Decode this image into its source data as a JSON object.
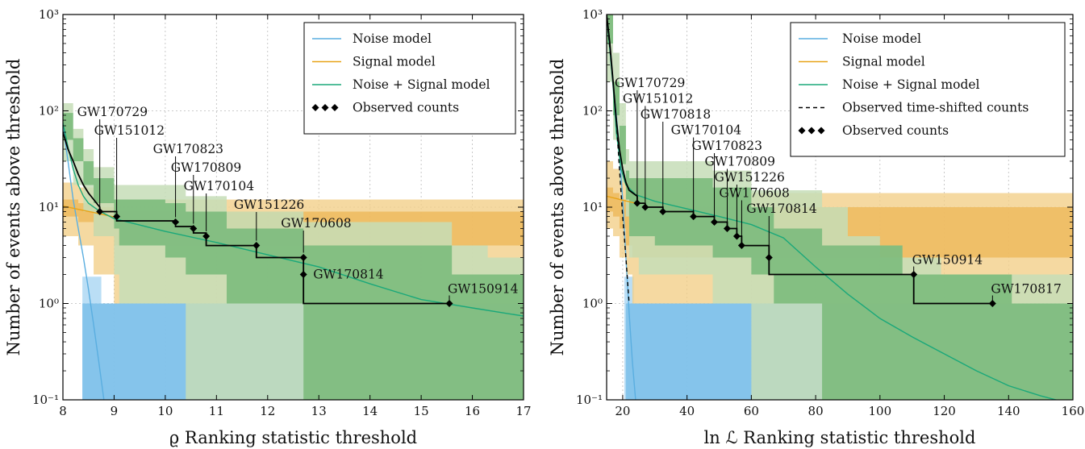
{
  "chart_data": [
    {
      "type": "line",
      "xlabel": "ϱ Ranking statistic threshold",
      "ylabel": "Number of events above threshold",
      "xlim": [
        8,
        17
      ],
      "ylim": [
        0.1,
        1000
      ],
      "yscale": "log",
      "xticks": [
        8,
        9,
        10,
        11,
        12,
        13,
        14,
        15,
        16,
        17
      ],
      "xticklabels": [
        "8",
        "9",
        "10",
        "11",
        "12",
        "13",
        "14",
        "15",
        "16",
        "17"
      ],
      "yticks": [
        0.1,
        1,
        10,
        100,
        1000
      ],
      "yticklabels": [
        "10⁻¹",
        "10⁰",
        "10¹",
        "10²",
        "10³"
      ],
      "grid": true,
      "legend_position": "top-right",
      "legend": [
        {
          "label": "Noise model",
          "kind": "line",
          "color": "#5aaee0"
        },
        {
          "label": "Signal model",
          "kind": "line",
          "color": "#e8a317"
        },
        {
          "label": "Noise + Signal model",
          "kind": "line",
          "color": "#1aa87a"
        },
        {
          "label": "Observed counts",
          "kind": "markers",
          "color": "#000000"
        }
      ],
      "observed_steps": [
        [
          8,
          60
        ],
        [
          8.1,
          40
        ],
        [
          8.2,
          30
        ],
        [
          8.3,
          22
        ],
        [
          8.4,
          17
        ],
        [
          8.5,
          14
        ],
        [
          8.6,
          12
        ],
        [
          8.72,
          10
        ],
        [
          8.72,
          9
        ],
        [
          9.05,
          9
        ],
        [
          9.05,
          7.2
        ],
        [
          10.2,
          7.2
        ],
        [
          10.2,
          6.3
        ],
        [
          10.55,
          6.3
        ],
        [
          10.55,
          5.4
        ],
        [
          10.8,
          5.4
        ],
        [
          10.8,
          4
        ],
        [
          11.78,
          4
        ],
        [
          11.78,
          3
        ],
        [
          12.7,
          3
        ],
        [
          12.7,
          1
        ],
        [
          15.55,
          1
        ]
      ],
      "events": [
        {
          "name": "GW170729",
          "x": 8.72,
          "y": 9
        },
        {
          "name": "GW151012",
          "x": 9.05,
          "y": 8
        },
        {
          "name": "GW170823",
          "x": 10.2,
          "y": 7
        },
        {
          "name": "GW170809",
          "x": 10.55,
          "y": 6
        },
        {
          "name": "GW170104",
          "x": 10.8,
          "y": 5
        },
        {
          "name": "GW151226",
          "x": 11.78,
          "y": 4
        },
        {
          "name": "GW170608",
          "x": 12.7,
          "y": 3
        },
        {
          "name": "GW170814",
          "x": 12.7,
          "y": 2
        },
        {
          "name": "GW150914",
          "x": 15.55,
          "y": 1
        }
      ],
      "noise_model": [
        [
          8,
          70
        ],
        [
          8.1,
          30
        ],
        [
          8.2,
          12
        ],
        [
          8.3,
          6
        ],
        [
          8.4,
          3
        ],
        [
          8.5,
          1.4
        ],
        [
          8.6,
          0.6
        ],
        [
          8.7,
          0.25
        ],
        [
          8.8,
          0.1
        ]
      ],
      "signal_model": [
        [
          8,
          10.3
        ],
        [
          8.3,
          9.5
        ],
        [
          8.6,
          8.8
        ],
        [
          9,
          7.9
        ]
      ],
      "noise_signal_model": [
        [
          8,
          75
        ],
        [
          8.1,
          42
        ],
        [
          8.2,
          25
        ],
        [
          8.3,
          17
        ],
        [
          8.4,
          13
        ],
        [
          8.5,
          11
        ],
        [
          8.7,
          9.2
        ],
        [
          9,
          7.6
        ],
        [
          10,
          5.6
        ],
        [
          11,
          4.3
        ],
        [
          12,
          3.2
        ],
        [
          13,
          2.4
        ],
        [
          14,
          1.6
        ],
        [
          15,
          1.1
        ],
        [
          16,
          0.9
        ],
        [
          17,
          0.74
        ]
      ],
      "bands": [
        {
          "role": "noise",
          "level": "outer",
          "color": "#a9d6f2",
          "x": [
            8.38,
            8.38,
            8.55,
            8.75,
            9.0
          ],
          "ylo": [
            0.1,
            0.1,
            0.1,
            0.1,
            0.1
          ],
          "yhi": [
            1.9,
            1.9,
            1.9,
            1.0,
            1.0
          ]
        },
        {
          "role": "noise",
          "level": "inner",
          "color": "#78bde9",
          "x": [
            8.38,
            8.5,
            8.6,
            8.72
          ],
          "ylo": [
            0.1,
            0.1,
            0.1,
            0.1
          ],
          "yhi": [
            1.0,
            1.0,
            1.0,
            1.0
          ]
        },
        {
          "role": "signal",
          "level": "outer",
          "color": "#f2d08a",
          "x": [
            8,
            8.3,
            8.6,
            9.0
          ],
          "ylo": [
            5,
            4,
            2,
            1
          ],
          "yhi": [
            18,
            16,
            14,
            12
          ]
        },
        {
          "role": "signal",
          "level": "inner",
          "color": "#eeb85a",
          "x": [
            8,
            8.3,
            8.6,
            9.0
          ],
          "ylo": [
            8,
            7,
            5,
            4
          ],
          "yhi": [
            12,
            11,
            10,
            9
          ]
        },
        {
          "role": "combined",
          "level": "outer",
          "color": "#c5ddb7",
          "x": [
            8,
            8.2,
            8.4,
            8.6,
            9.0,
            9.1,
            10.0,
            10.4,
            11.2,
            12.7,
            13.3,
            15.6,
            16.3,
            17
          ],
          "ylo": [
            30,
            17,
            9,
            5,
            2,
            1,
            1,
            0.1,
            0.1,
            0.1,
            0.1,
            0.1,
            0.1,
            0.1
          ],
          "yhi": [
            120,
            65,
            40,
            26,
            17,
            17,
            17,
            13,
            9,
            7,
            7,
            4,
            3,
            3
          ]
        },
        {
          "role": "combined",
          "level": "inner",
          "color": "#7fbd80",
          "x": [
            8,
            8.2,
            8.4,
            8.6,
            9.0,
            9.1,
            10.0,
            10.4,
            11.2,
            12.7,
            13.3,
            15.6,
            16.3,
            17
          ],
          "ylo": [
            50,
            30,
            17,
            11,
            6,
            4,
            3,
            2,
            1,
            0.1,
            0.1,
            0.1,
            0.1,
            0.1
          ],
          "yhi": [
            95,
            52,
            30,
            20,
            12,
            12,
            11,
            9,
            6,
            4,
            4,
            2,
            2,
            2
          ]
        }
      ]
    },
    {
      "type": "line",
      "xlabel": "ln ℒ Ranking statistic threshold",
      "ylabel": "Number of events above threshold",
      "xlim": [
        15,
        160
      ],
      "ylim": [
        0.1,
        1000
      ],
      "yscale": "log",
      "xticks": [
        20,
        40,
        60,
        80,
        100,
        120,
        140,
        160
      ],
      "xticklabels": [
        "20",
        "40",
        "60",
        "80",
        "100",
        "120",
        "140",
        "160"
      ],
      "yticks": [
        0.1,
        1,
        10,
        100,
        1000
      ],
      "yticklabels": [
        "10⁻¹",
        "10⁰",
        "10¹",
        "10²",
        "10³"
      ],
      "grid": true,
      "legend_position": "top-right",
      "legend": [
        {
          "label": "Noise model",
          "kind": "line",
          "color": "#5aaee0"
        },
        {
          "label": "Signal model",
          "kind": "line",
          "color": "#e8a317"
        },
        {
          "label": "Noise + Signal model",
          "kind": "line",
          "color": "#1aa87a"
        },
        {
          "label": "Observed time-shifted counts",
          "kind": "dashed",
          "color": "#000000"
        },
        {
          "label": "Observed counts",
          "kind": "markers",
          "color": "#000000"
        }
      ],
      "observed_steps": [
        [
          15,
          1000
        ],
        [
          16,
          500
        ],
        [
          17,
          200
        ],
        [
          18,
          80
        ],
        [
          19,
          40
        ],
        [
          20,
          25
        ],
        [
          21,
          18
        ],
        [
          22,
          15
        ],
        [
          24.5,
          13
        ],
        [
          24.5,
          11
        ],
        [
          27,
          11
        ],
        [
          27,
          10
        ],
        [
          32.5,
          10
        ],
        [
          32.5,
          9
        ],
        [
          42,
          9
        ],
        [
          42,
          8
        ],
        [
          48.5,
          8
        ],
        [
          48.5,
          7
        ],
        [
          52.5,
          7
        ],
        [
          52.5,
          6
        ],
        [
          55.5,
          6
        ],
        [
          55.5,
          5
        ],
        [
          57,
          5
        ],
        [
          57,
          4
        ],
        [
          65.5,
          4
        ],
        [
          65.5,
          2
        ],
        [
          110.5,
          2
        ],
        [
          110.5,
          1
        ],
        [
          135,
          1
        ]
      ],
      "time_shifted": [
        [
          15,
          1000
        ],
        [
          17,
          200
        ],
        [
          18,
          80
        ],
        [
          19,
          25
        ],
        [
          20,
          8
        ],
        [
          21,
          3
        ],
        [
          22,
          1
        ]
      ],
      "events": [
        {
          "name": "GW170729",
          "x": 24.5,
          "y": 11
        },
        {
          "name": "GW151012",
          "x": 27,
          "y": 10
        },
        {
          "name": "GW170818",
          "x": 32.5,
          "y": 9
        },
        {
          "name": "GW170104",
          "x": 42,
          "y": 8
        },
        {
          "name": "GW170823",
          "x": 48.5,
          "y": 7
        },
        {
          "name": "GW170809",
          "x": 52.5,
          "y": 6
        },
        {
          "name": "GW151226",
          "x": 55.5,
          "y": 5
        },
        {
          "name": "GW170608",
          "x": 57,
          "y": 4
        },
        {
          "name": "GW170814",
          "x": 65.5,
          "y": 3
        },
        {
          "name": "GW150914",
          "x": 110.5,
          "y": 2
        },
        {
          "name": "GW170817",
          "x": 135,
          "y": 1
        }
      ],
      "noise_model": [
        [
          15,
          1000
        ],
        [
          17,
          200
        ],
        [
          18.5,
          60
        ],
        [
          20,
          12
        ],
        [
          21,
          3
        ],
        [
          22,
          0.8
        ],
        [
          23,
          0.25
        ],
        [
          24,
          0.1
        ]
      ],
      "signal_model": [
        [
          15,
          13
        ],
        [
          18,
          12.3
        ],
        [
          21,
          11.6
        ],
        [
          24,
          11
        ]
      ],
      "noise_signal_model": [
        [
          15,
          1000
        ],
        [
          17,
          180
        ],
        [
          18,
          60
        ],
        [
          19.5,
          25
        ],
        [
          21,
          17
        ],
        [
          24,
          13.5
        ],
        [
          30,
          11.5
        ],
        [
          40,
          9.6
        ],
        [
          50,
          8
        ],
        [
          60,
          6.6
        ],
        [
          70,
          4.8
        ],
        [
          80,
          2.4
        ],
        [
          90,
          1.25
        ],
        [
          100,
          0.7
        ],
        [
          110,
          0.45
        ],
        [
          120,
          0.3
        ],
        [
          130,
          0.2
        ],
        [
          140,
          0.14
        ],
        [
          150,
          0.11
        ],
        [
          160,
          0.09
        ]
      ],
      "bands": [
        {
          "role": "noise",
          "level": "outer",
          "color": "#a9d6f2",
          "x": [
            20.5,
            22,
            23.5,
            25.5
          ],
          "ylo": [
            0.1,
            0.1,
            0.1,
            0.1
          ],
          "yhi": [
            1.9,
            1.9,
            1.0,
            1.0
          ]
        },
        {
          "role": "noise",
          "level": "inner",
          "color": "#78bde9",
          "x": [
            21,
            22.5,
            24
          ],
          "ylo": [
            0.1,
            0.1,
            0.1
          ],
          "yhi": [
            1.0,
            1.0,
            1.0
          ]
        },
        {
          "role": "signal",
          "level": "outer",
          "color": "#f2d08a",
          "x": [
            15,
            17,
            19,
            21,
            23
          ],
          "ylo": [
            6,
            5,
            3,
            2,
            1
          ],
          "yhi": [
            30,
            25,
            20,
            16,
            14
          ]
        },
        {
          "role": "signal",
          "level": "inner",
          "color": "#eeb85a",
          "x": [
            15,
            17,
            19,
            21,
            23
          ],
          "ylo": [
            9,
            8,
            6,
            4,
            3
          ],
          "yhi": [
            16,
            14,
            12,
            11,
            10
          ]
        },
        {
          "role": "combined",
          "level": "outer",
          "color": "#c5ddb7",
          "x": [
            15,
            17,
            19,
            21,
            22,
            25,
            30,
            40,
            48,
            54,
            60,
            82,
            90,
            100,
            107,
            119,
            150,
            160
          ],
          "ylo": [
            200,
            50,
            18,
            8,
            3,
            2,
            2,
            2,
            1,
            1,
            0.1,
            0.1,
            0.1,
            0.1,
            0.1,
            0.1,
            0.1,
            0.1
          ],
          "yhi": [
            1000,
            400,
            120,
            40,
            30,
            30,
            30,
            30,
            24,
            24,
            15,
            10,
            5,
            3,
            3,
            2,
            2,
            2
          ]
        },
        {
          "role": "combined",
          "level": "inner",
          "color": "#7fbd80",
          "x": [
            15,
            17,
            19,
            21,
            22,
            25,
            30,
            40,
            48,
            54,
            60,
            67,
            82,
            107,
            141,
            160
          ],
          "ylo": [
            500,
            90,
            28,
            12,
            5,
            5,
            4,
            4,
            3,
            3,
            2,
            1,
            0.1,
            0.1,
            0.1,
            0.1
          ],
          "yhi": [
            1000,
            200,
            70,
            24,
            20,
            20,
            20,
            20,
            16,
            16,
            10,
            6,
            4,
            2,
            1,
            1
          ]
        }
      ]
    }
  ]
}
